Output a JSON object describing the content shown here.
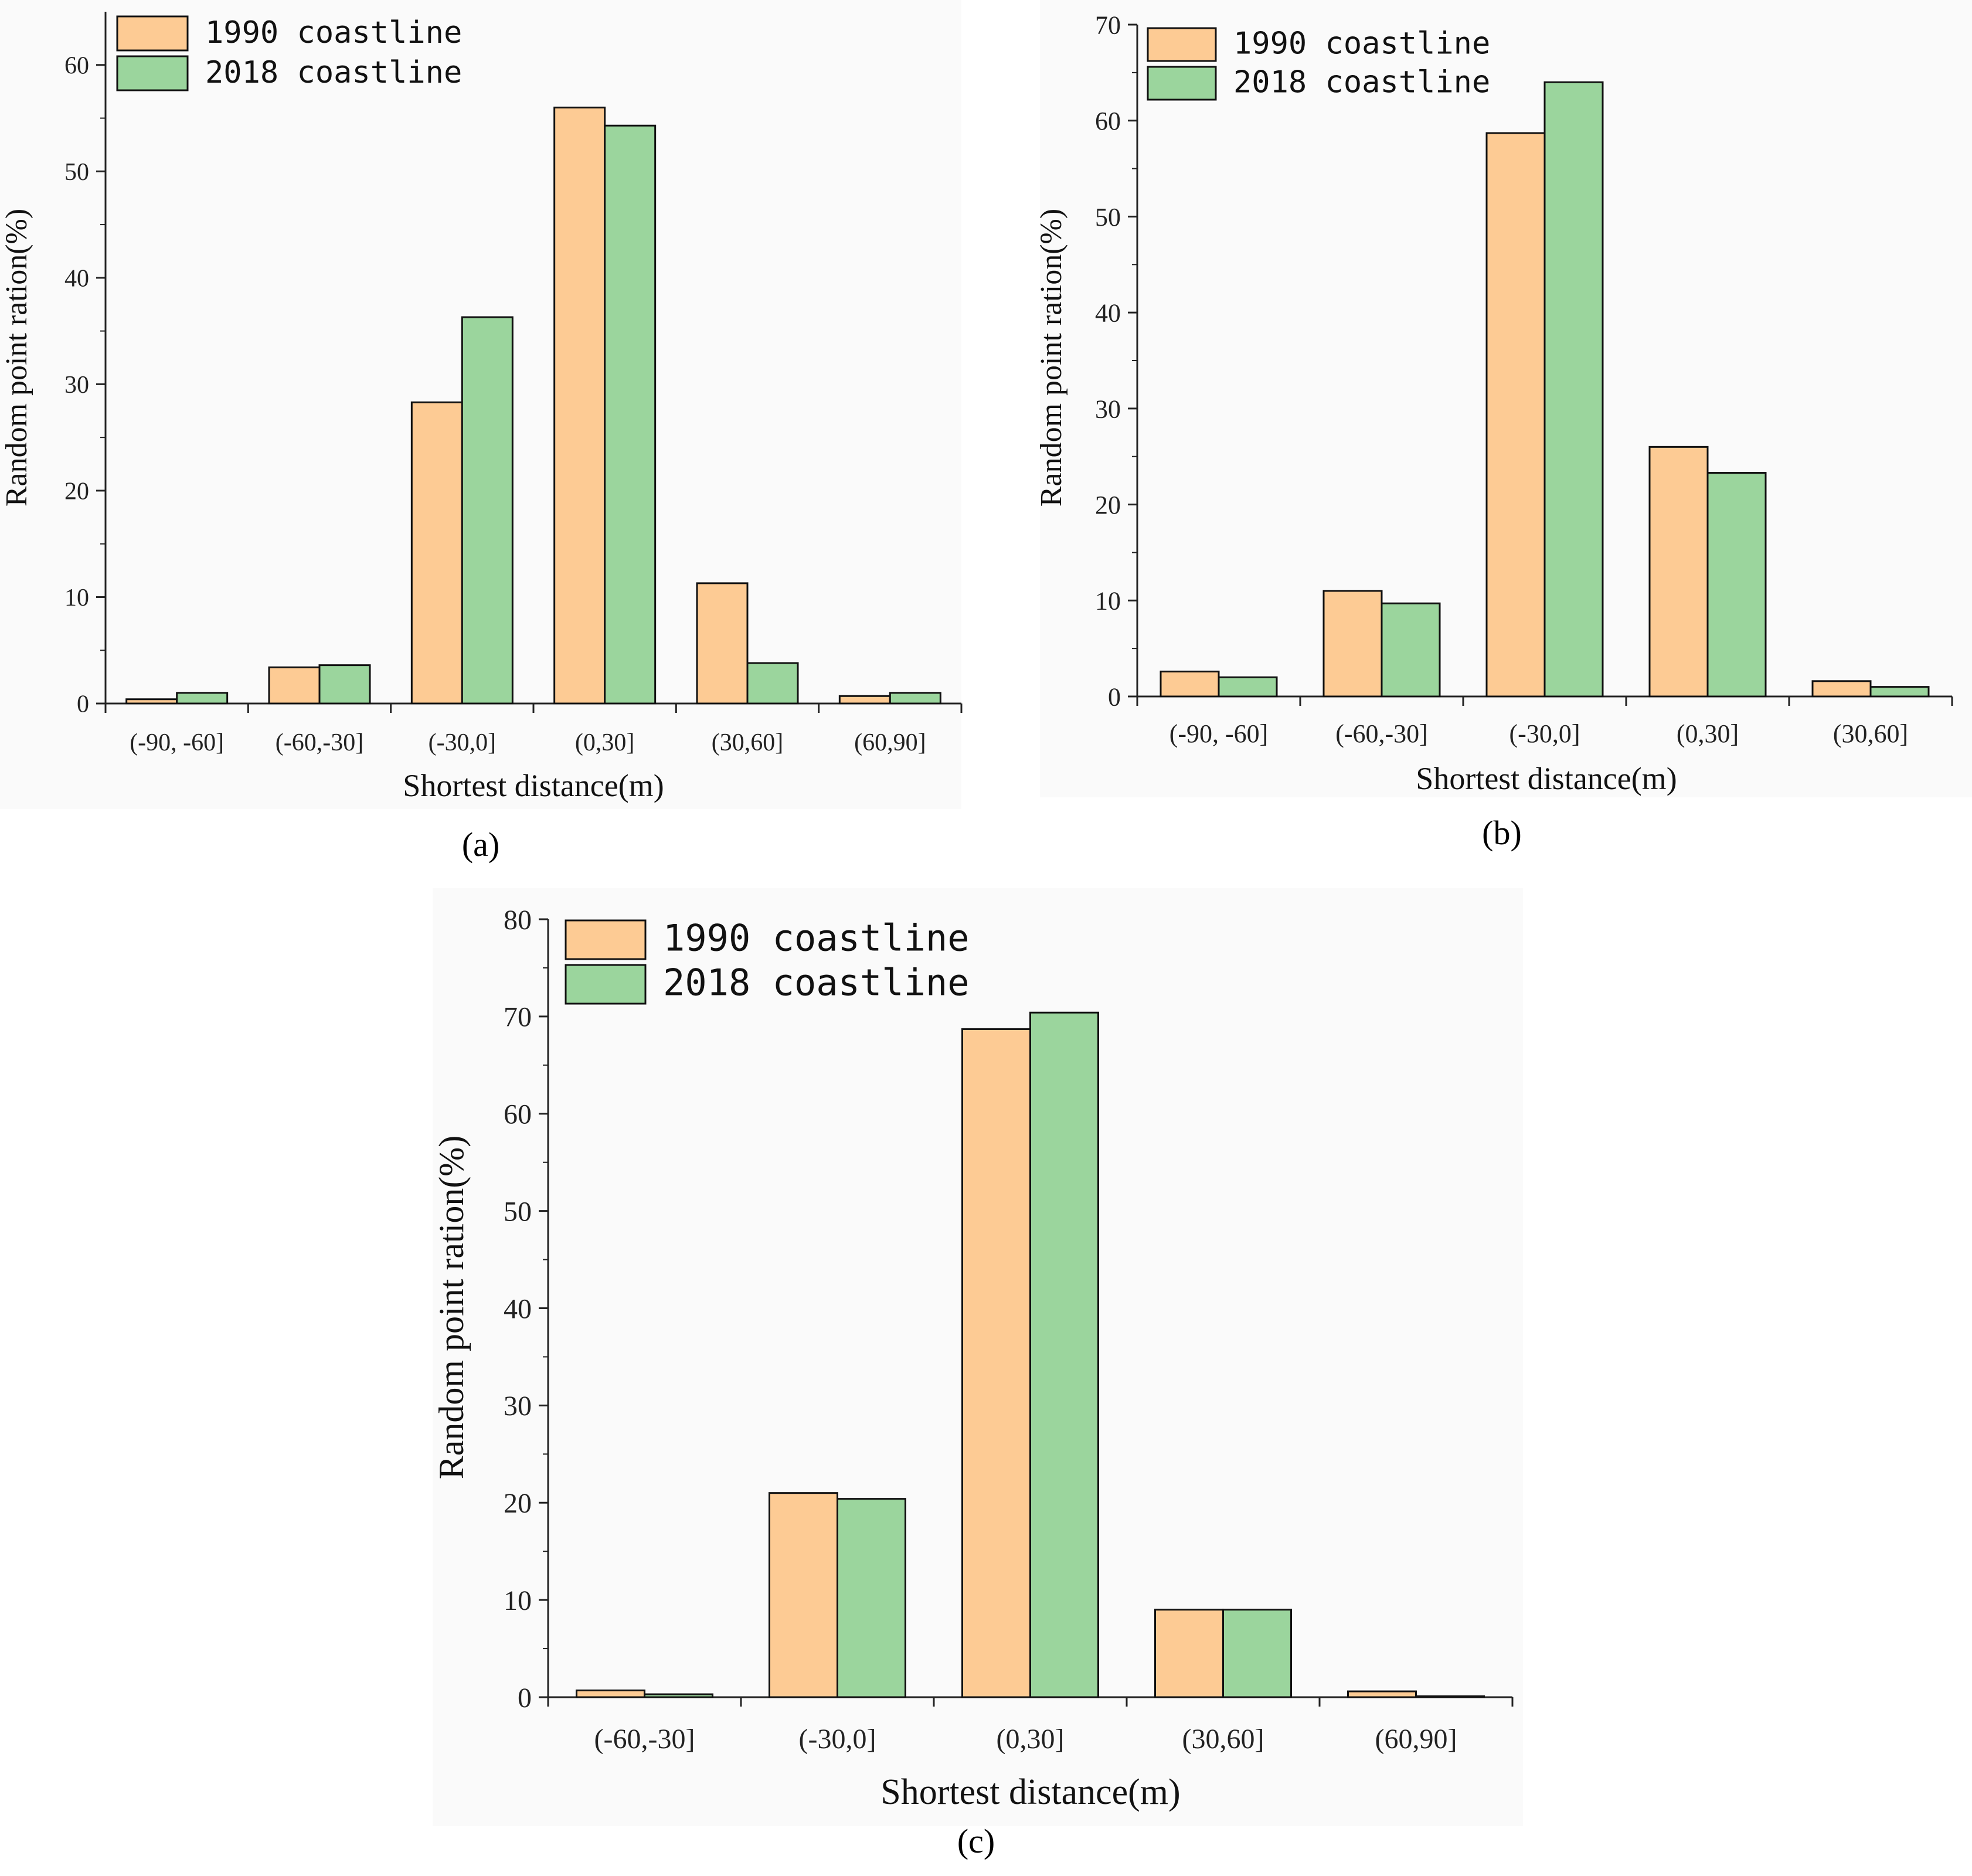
{
  "colors": {
    "series_1990": "#fdcb94",
    "series_2018": "#9bd59d",
    "axis": "#222222",
    "panel_bg": "#fafafa"
  },
  "chart_data": [
    {
      "type": "bar",
      "panel": "a",
      "categories": [
        "(-90, -60]",
        "(-60,-30]",
        "(-30,0]",
        "(0,30]",
        "(30,60]",
        "(60,90]"
      ],
      "series": [
        {
          "name": "1990 coastline",
          "values": [
            0.4,
            3.4,
            28.3,
            56.0,
            11.3,
            0.7
          ]
        },
        {
          "name": "2018 coastline",
          "values": [
            1.0,
            3.6,
            36.3,
            54.3,
            3.8,
            1.0
          ]
        }
      ],
      "xlabel": "Shortest distance(m)",
      "ylabel": "Random point ration(%)",
      "ylim": [
        0,
        65
      ],
      "yticks": [
        0,
        10,
        20,
        30,
        40,
        50,
        60
      ],
      "legend": "top-left"
    },
    {
      "type": "bar",
      "panel": "b",
      "categories": [
        "(-90, -60]",
        "(-60,-30]",
        "(-30,0]",
        "(0,30]",
        "(30,60]"
      ],
      "series": [
        {
          "name": "1990 coastline",
          "values": [
            2.6,
            11.0,
            58.7,
            26.0,
            1.6
          ]
        },
        {
          "name": "2018 coastline",
          "values": [
            2.0,
            9.7,
            64.0,
            23.3,
            1.0
          ]
        }
      ],
      "xlabel": "Shortest distance(m)",
      "ylabel": "Random point ration(%)",
      "ylim": [
        0,
        70
      ],
      "yticks": [
        0,
        10,
        20,
        30,
        40,
        50,
        60,
        70
      ],
      "legend": "top-left"
    },
    {
      "type": "bar",
      "panel": "c",
      "categories": [
        "(-60,-30]",
        "(-30,0]",
        "(0,30]",
        "(30,60]",
        "(60,90]"
      ],
      "series": [
        {
          "name": "1990 coastline",
          "values": [
            0.7,
            21.0,
            68.7,
            9.0,
            0.6
          ]
        },
        {
          "name": "2018 coastline",
          "values": [
            0.3,
            20.4,
            70.4,
            9.0,
            0.1
          ]
        }
      ],
      "xlabel": "Shortest distance(m)",
      "ylabel": "Random point ration(%)",
      "ylim": [
        0,
        80
      ],
      "yticks": [
        0,
        10,
        20,
        30,
        40,
        50,
        60,
        70,
        80
      ],
      "legend": "top-left"
    }
  ],
  "panel_labels": {
    "a": "(a)",
    "b": "(b)",
    "c": "(c)"
  }
}
